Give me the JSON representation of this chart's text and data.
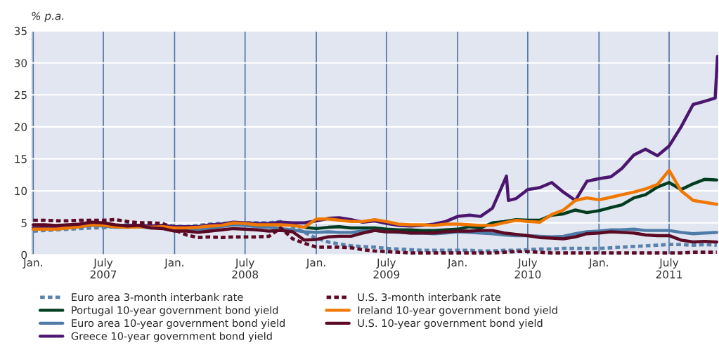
{
  "chart_data": {
    "type": "line",
    "ylabel": "% p.a.",
    "x": [
      "2007-01",
      "2007-02",
      "2007-03",
      "2007-04",
      "2007-05",
      "2007-06",
      "2007-07",
      "2007-08",
      "2007-09",
      "2007-10",
      "2007-11",
      "2007-12",
      "2008-01",
      "2008-02",
      "2008-03",
      "2008-04",
      "2008-05",
      "2008-06",
      "2008-07",
      "2008-08",
      "2008-09",
      "2008-10",
      "2008-11",
      "2008-12",
      "2009-01",
      "2009-02",
      "2009-03",
      "2009-04",
      "2009-05",
      "2009-06",
      "2009-07",
      "2009-08",
      "2009-09",
      "2009-10",
      "2009-11",
      "2009-12",
      "2010-01",
      "2010-02",
      "2010-03",
      "2010-04",
      "2010-05",
      "2010-06",
      "2010-07",
      "2010-08",
      "2010-09",
      "2010-10",
      "2010-11",
      "2010-12",
      "2011-01",
      "2011-02",
      "2011-03",
      "2011-04",
      "2011-05",
      "2011-06",
      "2011-07",
      "2011-08",
      "2011-09",
      "2011-10",
      "2011-11"
    ],
    "series": [
      {
        "name": "Euro area 3-month interbank rate",
        "color": "#5a82ad",
        "line_style": "dashed",
        "values": [
          3.7,
          3.8,
          3.9,
          4.0,
          4.1,
          4.2,
          4.2,
          4.5,
          4.7,
          4.7,
          4.6,
          4.8,
          4.5,
          4.4,
          4.6,
          4.8,
          4.9,
          4.9,
          5.0,
          5.0,
          5.0,
          5.2,
          4.4,
          3.5,
          2.6,
          2.0,
          1.7,
          1.4,
          1.3,
          1.2,
          1.0,
          0.9,
          0.8,
          0.7,
          0.7,
          0.7,
          0.7,
          0.7,
          0.6,
          0.6,
          0.7,
          0.7,
          0.8,
          0.9,
          0.9,
          1.0,
          1.0,
          1.0,
          1.0,
          1.1,
          1.2,
          1.3,
          1.4,
          1.5,
          1.6,
          1.6,
          1.5,
          1.6,
          1.5
        ]
      },
      {
        "name": "Portugal 10-year government bond yield",
        "color": "#003d20",
        "values": [
          null,
          null,
          null,
          null,
          null,
          null,
          null,
          null,
          null,
          null,
          null,
          null,
          null,
          null,
          null,
          null,
          null,
          null,
          null,
          null,
          null,
          null,
          null,
          4.3,
          4.1,
          4.3,
          4.4,
          4.2,
          4.2,
          4.2,
          4.0,
          3.9,
          3.9,
          3.8,
          3.8,
          3.9,
          4.0,
          4.4,
          4.2,
          5.0,
          5.2,
          5.5,
          5.4,
          5.4,
          6.2,
          6.4,
          7.0,
          6.6,
          6.9,
          7.4,
          7.8,
          8.9,
          9.4,
          10.6,
          11.3,
          10.2,
          11.1,
          11.8,
          11.7
        ]
      },
      {
        "name": "Euro area 10-year government bond yield",
        "color": "#4f7ba6",
        "values": [
          4.0,
          4.1,
          4.0,
          4.2,
          4.4,
          4.6,
          4.5,
          4.3,
          4.3,
          4.4,
          4.2,
          4.3,
          4.1,
          4.0,
          3.9,
          4.1,
          4.4,
          4.7,
          4.6,
          4.4,
          4.3,
          4.1,
          3.9,
          3.6,
          3.5,
          3.6,
          3.5,
          3.5,
          3.7,
          3.8,
          3.6,
          3.5,
          3.4,
          3.4,
          3.3,
          3.4,
          3.6,
          3.5,
          3.4,
          3.3,
          3.1,
          3.0,
          3.0,
          2.9,
          2.8,
          2.9,
          3.3,
          3.6,
          3.7,
          3.9,
          3.9,
          4.0,
          3.8,
          3.8,
          3.8,
          3.5,
          3.3,
          3.4,
          3.5
        ]
      },
      {
        "name": "Greece 10-year government bond yield",
        "color": "#4b166e",
        "x": [
          "2007-01-01",
          "2007-02-01",
          "2007-03-01",
          "2007-04-01",
          "2007-05-01",
          "2007-06-01",
          "2007-07-01",
          "2007-08-01",
          "2007-09-01",
          "2007-10-01",
          "2007-11-01",
          "2007-12-01",
          "2008-01-01",
          "2008-02-01",
          "2008-03-01",
          "2008-04-01",
          "2008-05-01",
          "2008-06-01",
          "2008-07-01",
          "2008-08-01",
          "2008-09-01",
          "2008-10-01",
          "2008-11-01",
          "2008-12-01",
          "2009-01-01",
          "2009-02-01",
          "2009-03-01",
          "2009-04-01",
          "2009-05-01",
          "2009-06-01",
          "2009-07-01",
          "2009-08-01",
          "2009-09-01",
          "2009-10-01",
          "2009-11-01",
          "2009-12-01",
          "2010-01-01",
          "2010-02-01",
          "2010-03-01",
          "2010-04-01",
          "2010-05-07",
          "2010-05-12",
          "2010-06-01",
          "2010-07-01",
          "2010-08-01",
          "2010-09-01",
          "2010-10-01",
          "2010-11-01",
          "2010-12-01",
          "2011-01-01",
          "2011-02-01",
          "2011-03-01",
          "2011-04-01",
          "2011-05-01",
          "2011-06-01",
          "2011-07-01",
          "2011-08-01",
          "2011-09-01",
          "2011-10-01",
          "2011-10-28",
          "2011-11-03"
        ],
        "values": [
          4.2,
          4.3,
          4.2,
          4.4,
          4.6,
          4.9,
          4.8,
          4.6,
          4.6,
          4.6,
          4.5,
          4.6,
          4.4,
          4.4,
          4.4,
          4.7,
          4.8,
          5.1,
          5.0,
          4.9,
          4.9,
          5.1,
          5.0,
          5.0,
          5.3,
          5.7,
          5.8,
          5.5,
          5.1,
          5.3,
          4.9,
          4.6,
          4.5,
          4.6,
          4.8,
          5.2,
          6.0,
          6.2,
          6.0,
          7.3,
          12.3,
          8.5,
          8.8,
          10.2,
          10.5,
          11.3,
          9.8,
          8.5,
          11.5,
          11.9,
          12.2,
          13.5,
          15.6,
          16.5,
          15.5,
          17.0,
          20.0,
          23.5,
          24.0,
          24.5,
          31.0
        ]
      },
      {
        "name": "U.S. 3-month interbank rate",
        "color": "#5c0a25",
        "line_style": "dashed",
        "values": [
          5.4,
          5.4,
          5.3,
          5.3,
          5.4,
          5.4,
          5.4,
          5.5,
          5.2,
          5.0,
          5.0,
          4.9,
          3.9,
          3.1,
          2.7,
          2.8,
          2.7,
          2.8,
          2.8,
          2.8,
          2.9,
          4.2,
          2.5,
          1.8,
          1.2,
          1.2,
          1.2,
          1.1,
          0.8,
          0.6,
          0.5,
          0.4,
          0.3,
          0.3,
          0.3,
          0.3,
          0.3,
          0.3,
          0.3,
          0.3,
          0.4,
          0.5,
          0.5,
          0.4,
          0.3,
          0.3,
          0.3,
          0.3,
          0.3,
          0.3,
          0.3,
          0.3,
          0.3,
          0.3,
          0.3,
          0.3,
          0.4,
          0.4,
          0.4
        ]
      },
      {
        "name": "Ireland 10-year government bond yield",
        "color": "#f07800",
        "values": [
          4.0,
          4.0,
          4.0,
          4.2,
          4.4,
          4.7,
          4.6,
          4.4,
          4.3,
          4.4,
          4.3,
          4.4,
          4.2,
          4.2,
          4.3,
          4.5,
          4.6,
          5.0,
          4.9,
          4.7,
          4.7,
          4.7,
          4.6,
          4.3,
          5.6,
          5.6,
          5.4,
          5.2,
          5.2,
          5.5,
          5.2,
          4.8,
          4.7,
          4.7,
          4.6,
          4.8,
          4.8,
          4.7,
          4.6,
          4.6,
          5.0,
          5.4,
          5.2,
          5.1,
          6.3,
          7.0,
          8.5,
          8.9,
          8.6,
          9.0,
          9.4,
          9.8,
          10.3,
          11.0,
          13.2,
          10.0,
          8.5,
          8.2,
          7.9
        ]
      },
      {
        "name": "U.S. 10-year government bond yield",
        "color": "#5a0a24",
        "values": [
          4.7,
          4.7,
          4.6,
          4.7,
          4.8,
          5.1,
          5.0,
          4.7,
          4.5,
          4.6,
          4.2,
          4.1,
          3.7,
          3.7,
          3.5,
          3.7,
          3.9,
          4.1,
          4.0,
          3.9,
          3.7,
          3.8,
          3.6,
          2.3,
          2.4,
          2.8,
          2.9,
          2.9,
          3.4,
          3.8,
          3.6,
          3.6,
          3.4,
          3.4,
          3.4,
          3.6,
          3.7,
          3.7,
          3.8,
          3.8,
          3.4,
          3.2,
          3.0,
          2.7,
          2.6,
          2.5,
          2.8,
          3.3,
          3.4,
          3.6,
          3.5,
          3.4,
          3.1,
          3.0,
          3.0,
          2.3,
          2.0,
          2.1,
          2.0
        ]
      }
    ],
    "xlim": [
      "2006-12-26",
      "2011-11-05"
    ],
    "xticks": [
      {
        "value": "2007-01-01",
        "label": "Jan."
      },
      {
        "value": "2007-07-01",
        "label": "July\n2007"
      },
      {
        "value": "2008-01-01",
        "label": "Jan."
      },
      {
        "value": "2008-07-01",
        "label": "July\n2008"
      },
      {
        "value": "2009-01-01",
        "label": "Jan."
      },
      {
        "value": "2009-07-01",
        "label": "July\n2009"
      },
      {
        "value": "2010-01-01",
        "label": "Jan."
      },
      {
        "value": "2010-07-01",
        "label": "July\n2010"
      },
      {
        "value": "2011-01-01",
        "label": "Jan."
      },
      {
        "value": "2011-07-01",
        "label": "July\n2011"
      }
    ],
    "ylim": [
      0,
      35
    ],
    "yticks": [
      0,
      5,
      10,
      15,
      20,
      25,
      30,
      35
    ],
    "grid": true,
    "legend": "bottom"
  }
}
